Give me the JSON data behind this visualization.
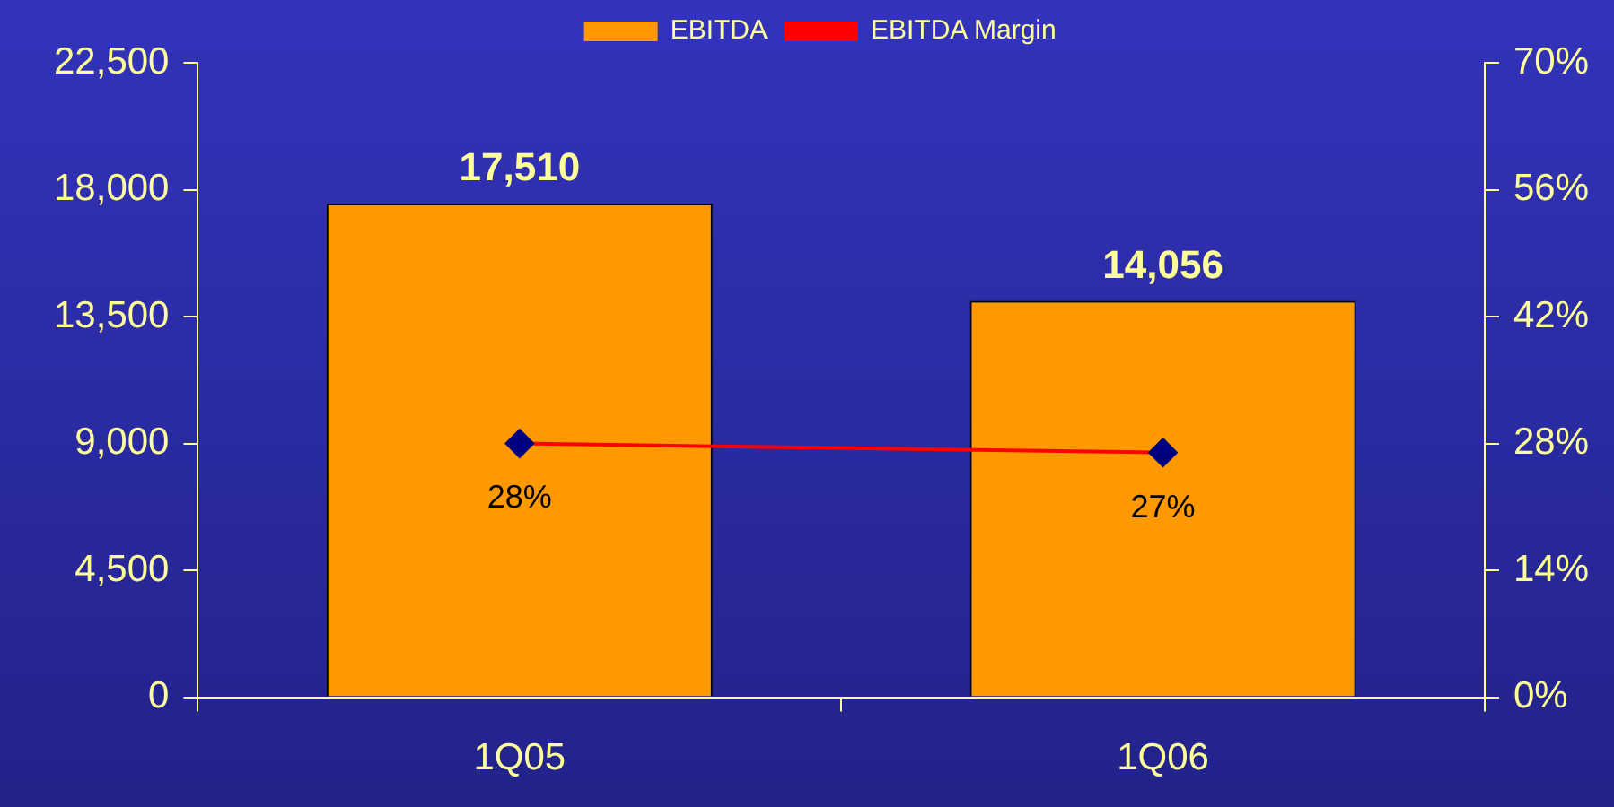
{
  "chart_data": {
    "type": "bar",
    "categories": [
      "1Q05",
      "1Q06"
    ],
    "series": [
      {
        "name": "EBITDA",
        "color": "#ff9900",
        "values": [
          17510,
          14056
        ],
        "value_labels": [
          "17,510",
          "14,056"
        ]
      },
      {
        "name": "EBITDA Margin",
        "type": "line",
        "axis": "y2",
        "color": "#ff0000",
        "marker": "diamond",
        "values": [
          28,
          27
        ],
        "value_labels": [
          "28%",
          "27%"
        ]
      }
    ],
    "ylim": [
      0,
      22500
    ],
    "yticks": [
      {
        "value": 0,
        "label": "0"
      },
      {
        "value": 4500,
        "label": "4,500"
      },
      {
        "value": 9000,
        "label": "9,000"
      },
      {
        "value": 13500,
        "label": "13,500"
      },
      {
        "value": 18000,
        "label": "18,000"
      },
      {
        "value": 22500,
        "label": "22,500"
      }
    ],
    "y2lim": [
      0,
      70
    ],
    "y2ticks": [
      {
        "value": 0,
        "label": "0%"
      },
      {
        "value": 14,
        "label": "14%"
      },
      {
        "value": 28,
        "label": "28%"
      },
      {
        "value": 42,
        "label": "42%"
      },
      {
        "value": 56,
        "label": "56%"
      },
      {
        "value": 70,
        "label": "70%"
      }
    ],
    "legend": "top"
  }
}
